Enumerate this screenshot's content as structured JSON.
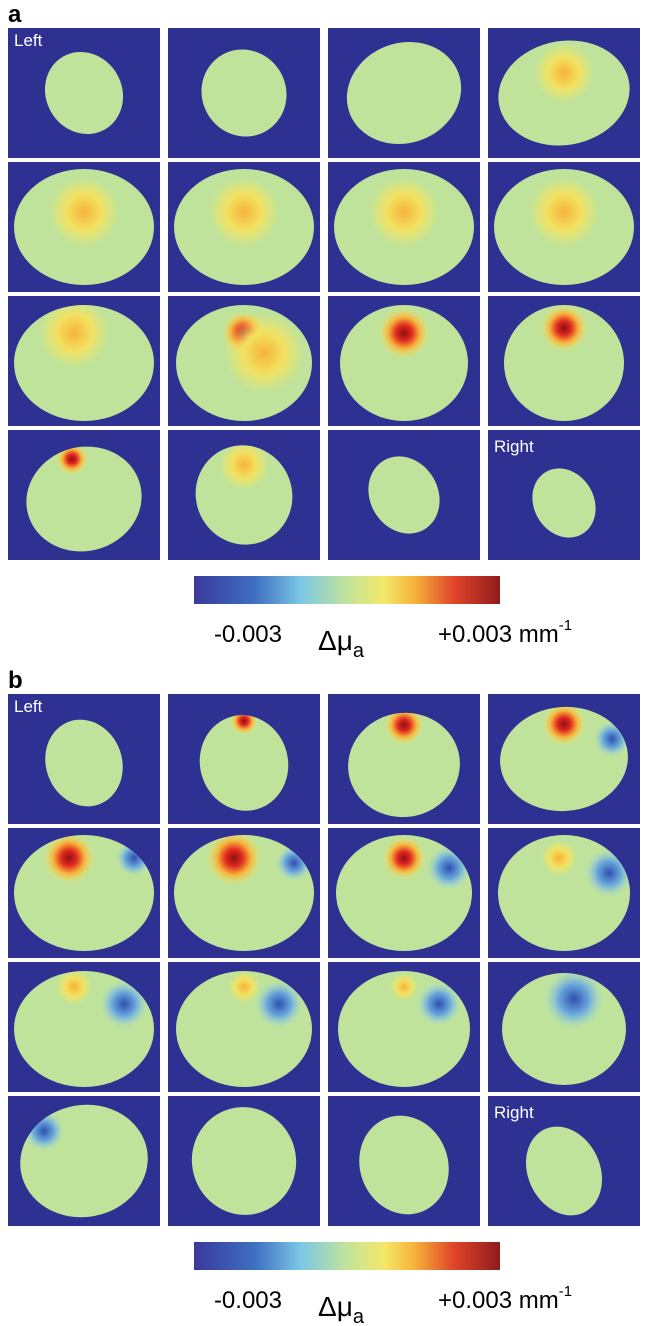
{
  "panels": [
    {
      "label": "a",
      "first_slice": "Left",
      "last_slice": "Right",
      "colorbar": {
        "min": "-0.003",
        "max": "+0.003 mm",
        "max_exponent": "-1",
        "symbol": "Δμ",
        "symbol_subscript": "a"
      }
    },
    {
      "label": "b",
      "first_slice": "Left",
      "last_slice": "Right",
      "colorbar": {
        "min": "-0.003",
        "max": "+0.003 mm",
        "max_exponent": "-1",
        "symbol": "Δμ",
        "symbol_subscript": "a"
      }
    }
  ]
}
